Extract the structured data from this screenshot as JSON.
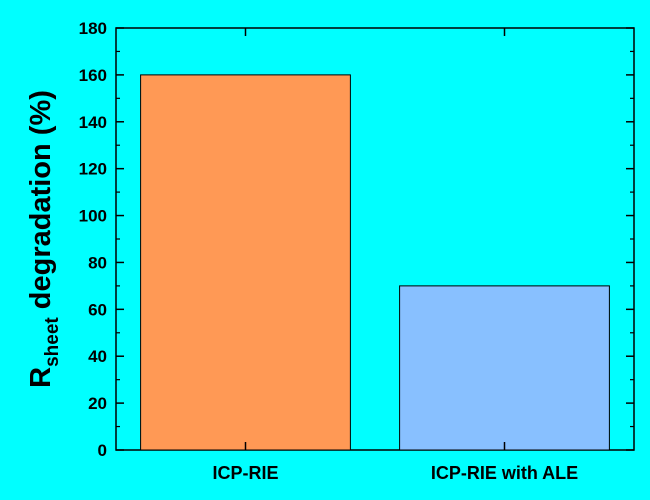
{
  "chart_data": {
    "type": "bar",
    "categories": [
      "ICP-RIE",
      "ICP-RIE with ALE"
    ],
    "values": [
      160,
      70
    ],
    "title": "",
    "xlabel": "",
    "ylabel": {
      "main": "R",
      "subscript": "sheet",
      "rest": " degradation (%)"
    },
    "ylim": [
      0,
      180
    ],
    "yticks": [
      "0",
      "20",
      "40",
      "60",
      "80",
      "100",
      "120",
      "140",
      "160",
      "180"
    ],
    "bar_colors": [
      "#FF9955",
      "#88C0FF"
    ],
    "background_color": "#00FFFF",
    "grid": false
  }
}
